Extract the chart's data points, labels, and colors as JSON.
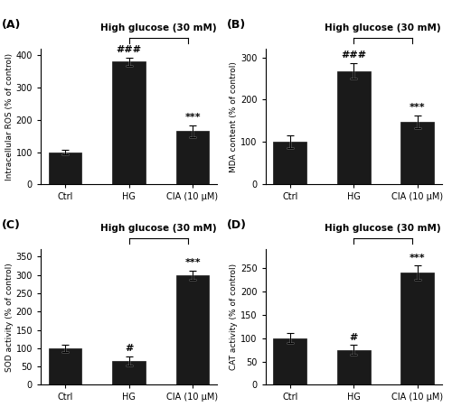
{
  "panels": [
    {
      "label": "(A)",
      "ylabel": "Intracellular ROS (% of control)",
      "title": "High glucose (30 mM)",
      "categories": [
        "Ctrl",
        "HG",
        "CIA (10 μM)"
      ],
      "values": [
        100,
        380,
        165
      ],
      "errors": [
        8,
        12,
        18
      ],
      "sig_hg": "###",
      "sig_cia": "***",
      "ylim": [
        0,
        420
      ],
      "yticks": [
        0,
        100,
        200,
        300,
        400
      ]
    },
    {
      "label": "(B)",
      "ylabel": "MDA content (% of control)",
      "title": "High glucose (30 mM)",
      "categories": [
        "Ctrl",
        "HG",
        "CIA (10 μM)"
      ],
      "values": [
        100,
        268,
        148
      ],
      "errors": [
        15,
        18,
        15
      ],
      "sig_hg": "###",
      "sig_cia": "***",
      "ylim": [
        0,
        320
      ],
      "yticks": [
        0,
        100,
        200,
        300
      ]
    },
    {
      "label": "(C)",
      "ylabel": "SOD activity (% of control)",
      "title": "High glucose (30 mM)",
      "categories": [
        "Ctrl",
        "HG",
        "CIA (10 μM)"
      ],
      "values": [
        100,
        65,
        300
      ],
      "errors": [
        10,
        12,
        12
      ],
      "sig_hg": "#",
      "sig_cia": "***",
      "ylim": [
        0,
        370
      ],
      "yticks": [
        0,
        50,
        100,
        150,
        200,
        250,
        300,
        350
      ]
    },
    {
      "label": "(D)",
      "ylabel": "CAT activity (% of control)",
      "title": "High glucose (30 mM)",
      "categories": [
        "Ctrl",
        "HG",
        "CIA (10 μM)"
      ],
      "values": [
        100,
        75,
        240
      ],
      "errors": [
        10,
        10,
        15
      ],
      "sig_hg": "#",
      "sig_cia": "***",
      "ylim": [
        0,
        290
      ],
      "yticks": [
        0,
        50,
        100,
        150,
        200,
        250
      ]
    }
  ],
  "bar_color": "#1a1a1a",
  "bar_width": 0.52,
  "fontsize_label": 6.5,
  "fontsize_tick": 7,
  "fontsize_panel": 9,
  "fontsize_title": 7.5,
  "fontsize_sig": 8,
  "background_color": "#ffffff"
}
